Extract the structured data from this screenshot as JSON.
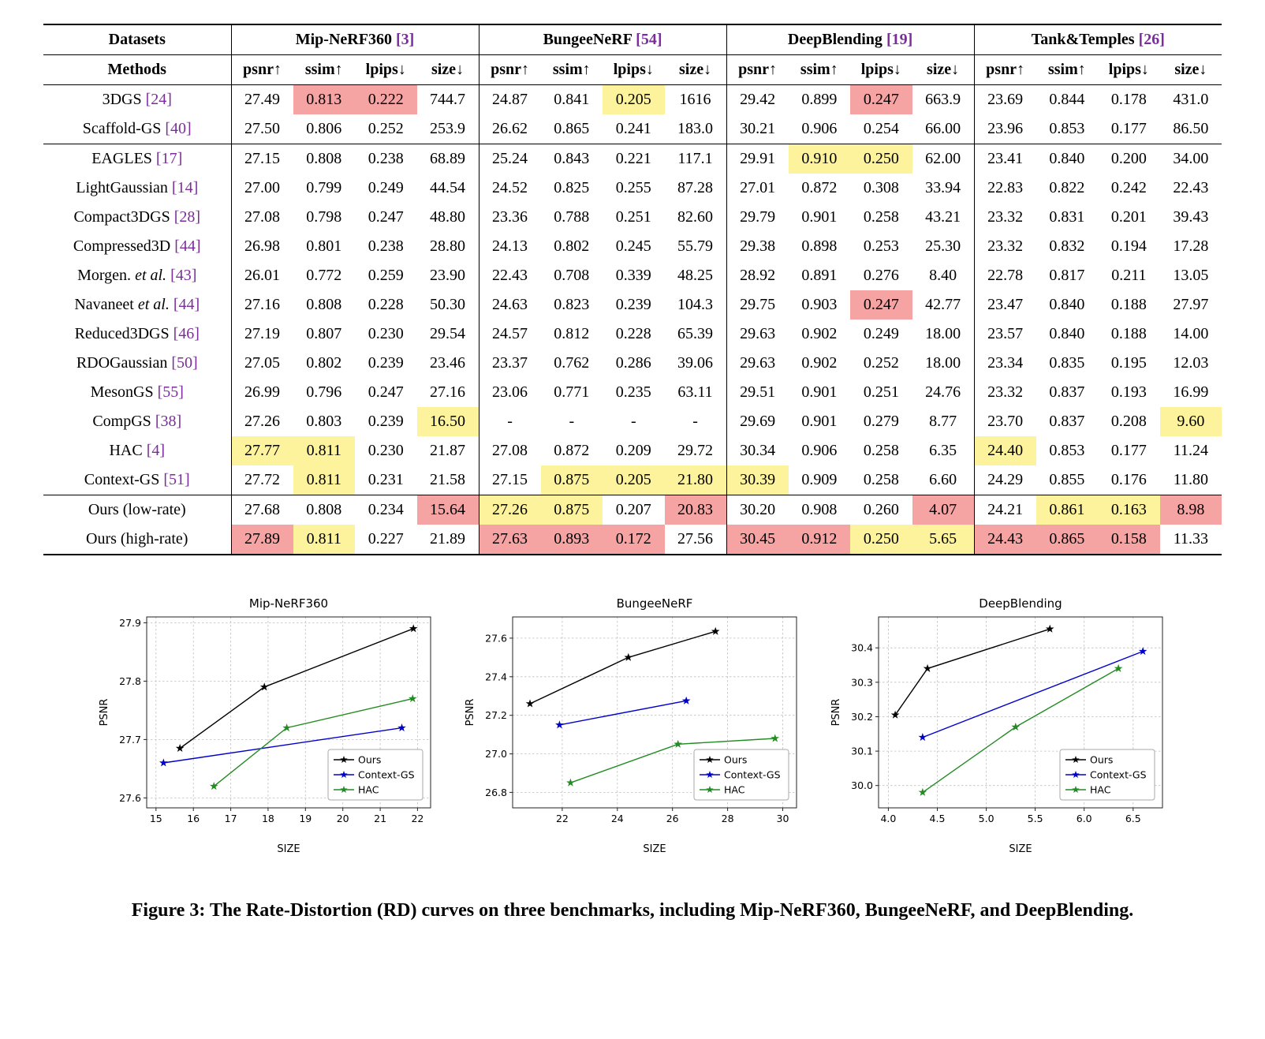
{
  "colors": {
    "highlight_best": "#F5A3A3",
    "highlight_second": "#FCF39C",
    "reference": "#7B2D9B"
  },
  "table": {
    "datasets_label": "Datasets",
    "methods_label": "Methods",
    "col_groups": [
      {
        "label": "Mip-NeRF360",
        "ref": "[3]"
      },
      {
        "label": "BungeeNeRF",
        "ref": "[54]"
      },
      {
        "label": "DeepBlending",
        "ref": "[19]"
      },
      {
        "label": "Tank&Temples",
        "ref": "[26]"
      }
    ],
    "metric_headers": [
      "psnr↑",
      "ssim↑",
      "lpips↓",
      "size↓"
    ],
    "rows": [
      {
        "method": "3DGS",
        "ref": "[24]",
        "rule_below": false,
        "values": [
          "27.49",
          "0.813",
          "0.222",
          "744.7",
          "24.87",
          "0.841",
          "0.205",
          "1616",
          "29.42",
          "0.899",
          "0.247",
          "663.9",
          "23.69",
          "0.844",
          "0.178",
          "431.0"
        ],
        "hl": [
          "",
          "r",
          "r",
          "",
          "",
          "",
          "y",
          "",
          "",
          "",
          "r",
          "",
          "",
          "",
          "",
          ""
        ]
      },
      {
        "method": "Scaffold-GS",
        "ref": "[40]",
        "rule_below": true,
        "values": [
          "27.50",
          "0.806",
          "0.252",
          "253.9",
          "26.62",
          "0.865",
          "0.241",
          "183.0",
          "30.21",
          "0.906",
          "0.254",
          "66.00",
          "23.96",
          "0.853",
          "0.177",
          "86.50"
        ],
        "hl": [
          "",
          "",
          "",
          "",
          "",
          "",
          "",
          "",
          "",
          "",
          "",
          "",
          "",
          "",
          "",
          ""
        ]
      },
      {
        "method": "EAGLES",
        "ref": "[17]",
        "rule_below": false,
        "values": [
          "27.15",
          "0.808",
          "0.238",
          "68.89",
          "25.24",
          "0.843",
          "0.221",
          "117.1",
          "29.91",
          "0.910",
          "0.250",
          "62.00",
          "23.41",
          "0.840",
          "0.200",
          "34.00"
        ],
        "hl": [
          "",
          "",
          "",
          "",
          "",
          "",
          "",
          "",
          "",
          "y",
          "y",
          "",
          "",
          "",
          "",
          ""
        ]
      },
      {
        "method": "LightGaussian",
        "ref": "[14]",
        "rule_below": false,
        "values": [
          "27.00",
          "0.799",
          "0.249",
          "44.54",
          "24.52",
          "0.825",
          "0.255",
          "87.28",
          "27.01",
          "0.872",
          "0.308",
          "33.94",
          "22.83",
          "0.822",
          "0.242",
          "22.43"
        ],
        "hl": [
          "",
          "",
          "",
          "",
          "",
          "",
          "",
          "",
          "",
          "",
          "",
          "",
          "",
          "",
          "",
          ""
        ]
      },
      {
        "method": "Compact3DGS",
        "ref": "[28]",
        "rule_below": false,
        "values": [
          "27.08",
          "0.798",
          "0.247",
          "48.80",
          "23.36",
          "0.788",
          "0.251",
          "82.60",
          "29.79",
          "0.901",
          "0.258",
          "43.21",
          "23.32",
          "0.831",
          "0.201",
          "39.43"
        ],
        "hl": [
          "",
          "",
          "",
          "",
          "",
          "",
          "",
          "",
          "",
          "",
          "",
          "",
          "",
          "",
          "",
          ""
        ]
      },
      {
        "method": "Compressed3D",
        "ref": "[44]",
        "rule_below": false,
        "values": [
          "26.98",
          "0.801",
          "0.238",
          "28.80",
          "24.13",
          "0.802",
          "0.245",
          "55.79",
          "29.38",
          "0.898",
          "0.253",
          "25.30",
          "23.32",
          "0.832",
          "0.194",
          "17.28"
        ],
        "hl": [
          "",
          "",
          "",
          "",
          "",
          "",
          "",
          "",
          "",
          "",
          "",
          "",
          "",
          "",
          "",
          ""
        ]
      },
      {
        "method": "Morgen. *et al.*",
        "ref": "[43]",
        "rule_below": false,
        "values": [
          "26.01",
          "0.772",
          "0.259",
          "23.90",
          "22.43",
          "0.708",
          "0.339",
          "48.25",
          "28.92",
          "0.891",
          "0.276",
          "8.40",
          "22.78",
          "0.817",
          "0.211",
          "13.05"
        ],
        "hl": [
          "",
          "",
          "",
          "",
          "",
          "",
          "",
          "",
          "",
          "",
          "",
          "",
          "",
          "",
          "",
          ""
        ]
      },
      {
        "method": "Navaneet *et al.*",
        "ref": "[44]",
        "rule_below": false,
        "values": [
          "27.16",
          "0.808",
          "0.228",
          "50.30",
          "24.63",
          "0.823",
          "0.239",
          "104.3",
          "29.75",
          "0.903",
          "0.247",
          "42.77",
          "23.47",
          "0.840",
          "0.188",
          "27.97"
        ],
        "hl": [
          "",
          "",
          "",
          "",
          "",
          "",
          "",
          "",
          "",
          "",
          "r",
          "",
          "",
          "",
          "",
          ""
        ]
      },
      {
        "method": "Reduced3DGS",
        "ref": "[46]",
        "rule_below": false,
        "values": [
          "27.19",
          "0.807",
          "0.230",
          "29.54",
          "24.57",
          "0.812",
          "0.228",
          "65.39",
          "29.63",
          "0.902",
          "0.249",
          "18.00",
          "23.57",
          "0.840",
          "0.188",
          "14.00"
        ],
        "hl": [
          "",
          "",
          "",
          "",
          "",
          "",
          "",
          "",
          "",
          "",
          "",
          "",
          "",
          "",
          "",
          ""
        ]
      },
      {
        "method": "RDOGaussian",
        "ref": "[50]",
        "rule_below": false,
        "values": [
          "27.05",
          "0.802",
          "0.239",
          "23.46",
          "23.37",
          "0.762",
          "0.286",
          "39.06",
          "29.63",
          "0.902",
          "0.252",
          "18.00",
          "23.34",
          "0.835",
          "0.195",
          "12.03"
        ],
        "hl": [
          "",
          "",
          "",
          "",
          "",
          "",
          "",
          "",
          "",
          "",
          "",
          "",
          "",
          "",
          "",
          ""
        ]
      },
      {
        "method": "MesonGS",
        "ref": "[55]",
        "rule_below": false,
        "values": [
          "26.99",
          "0.796",
          "0.247",
          "27.16",
          "23.06",
          "0.771",
          "0.235",
          "63.11",
          "29.51",
          "0.901",
          "0.251",
          "24.76",
          "23.32",
          "0.837",
          "0.193",
          "16.99"
        ],
        "hl": [
          "",
          "",
          "",
          "",
          "",
          "",
          "",
          "",
          "",
          "",
          "",
          "",
          "",
          "",
          "",
          ""
        ]
      },
      {
        "method": "CompGS",
        "ref": "[38]",
        "rule_below": false,
        "values": [
          "27.26",
          "0.803",
          "0.239",
          "16.50",
          "-",
          "-",
          "-",
          "-",
          "29.69",
          "0.901",
          "0.279",
          "8.77",
          "23.70",
          "0.837",
          "0.208",
          "9.60"
        ],
        "hl": [
          "",
          "",
          "",
          "y",
          "",
          "",
          "",
          "",
          "",
          "",
          "",
          "",
          "",
          "",
          "",
          "y"
        ]
      },
      {
        "method": "HAC",
        "ref": "[4]",
        "rule_below": false,
        "values": [
          "27.77",
          "0.811",
          "0.230",
          "21.87",
          "27.08",
          "0.872",
          "0.209",
          "29.72",
          "30.34",
          "0.906",
          "0.258",
          "6.35",
          "24.40",
          "0.853",
          "0.177",
          "11.24"
        ],
        "hl": [
          "y",
          "y",
          "",
          "",
          "",
          "",
          "",
          "",
          "",
          "",
          "",
          "",
          "y",
          "",
          "",
          ""
        ]
      },
      {
        "method": "Context-GS",
        "ref": "[51]",
        "rule_below": true,
        "values": [
          "27.72",
          "0.811",
          "0.231",
          "21.58",
          "27.15",
          "0.875",
          "0.205",
          "21.80",
          "30.39",
          "0.909",
          "0.258",
          "6.60",
          "24.29",
          "0.855",
          "0.176",
          "11.80"
        ],
        "hl": [
          "",
          "y",
          "",
          "",
          "",
          "y",
          "y",
          "y",
          "y",
          "",
          "",
          "",
          "",
          "",
          "",
          ""
        ]
      },
      {
        "method": "Ours (low-rate)",
        "ref": "",
        "rule_below": false,
        "values": [
          "27.68",
          "0.808",
          "0.234",
          "15.64",
          "27.26",
          "0.875",
          "0.207",
          "20.83",
          "30.20",
          "0.908",
          "0.260",
          "4.07",
          "24.21",
          "0.861",
          "0.163",
          "8.98"
        ],
        "hl": [
          "",
          "",
          "",
          "r",
          "y",
          "y",
          "",
          "r",
          "",
          "",
          "",
          "r",
          "",
          "y",
          "y",
          "r"
        ]
      },
      {
        "method": "Ours (high-rate)",
        "ref": "",
        "rule_below": false,
        "values": [
          "27.89",
          "0.811",
          "0.227",
          "21.89",
          "27.63",
          "0.893",
          "0.172",
          "27.56",
          "30.45",
          "0.912",
          "0.250",
          "5.65",
          "24.43",
          "0.865",
          "0.158",
          "11.33"
        ],
        "hl": [
          "r",
          "y",
          "",
          "",
          "r",
          "r",
          "r",
          "",
          "r",
          "r",
          "y",
          "y",
          "r",
          "r",
          "r",
          ""
        ]
      }
    ]
  },
  "chart_data": [
    {
      "type": "line",
      "title": "Mip-NeRF360",
      "xlabel": "SIZE",
      "ylabel": "PSNR",
      "xlim": [
        14.75,
        22.35
      ],
      "ylim": [
        27.583,
        27.91
      ],
      "xticks": [
        15,
        16,
        17,
        18,
        19,
        20,
        21,
        22
      ],
      "xtick_labels": [
        "15",
        "16",
        "17",
        "18",
        "19",
        "20",
        "21",
        "22"
      ],
      "yticks": [
        27.6,
        27.7,
        27.8,
        27.9
      ],
      "ytick_labels": [
        "27.6",
        "27.7",
        "27.8",
        "27.9"
      ],
      "grid": true,
      "legend_position": "lower right",
      "series": [
        {
          "name": "Ours",
          "color": "#000000",
          "points": [
            [
              15.64,
              27.685
            ],
            [
              17.9,
              27.79
            ],
            [
              21.89,
              27.89
            ]
          ]
        },
        {
          "name": "Context-GS",
          "color": "#0000CD",
          "points": [
            [
              15.2,
              27.66
            ],
            [
              21.58,
              27.72
            ]
          ]
        },
        {
          "name": "HAC",
          "color": "#228B22",
          "points": [
            [
              16.55,
              27.62
            ],
            [
              18.5,
              27.72
            ],
            [
              21.87,
              27.77
            ]
          ]
        }
      ]
    },
    {
      "type": "line",
      "title": "BungeeNeRF",
      "xlabel": "SIZE",
      "ylabel": "PSNR",
      "xlim": [
        20.2,
        30.5
      ],
      "ylim": [
        26.72,
        27.71
      ],
      "xticks": [
        22,
        24,
        26,
        28,
        30
      ],
      "xtick_labels": [
        "22",
        "24",
        "26",
        "28",
        "30"
      ],
      "yticks": [
        26.8,
        27.0,
        27.2,
        27.4,
        27.6
      ],
      "ytick_labels": [
        "26.8",
        "27.0",
        "27.2",
        "27.4",
        "27.6"
      ],
      "grid": true,
      "legend_position": "lower right",
      "series": [
        {
          "name": "Ours",
          "color": "#000000",
          "points": [
            [
              20.83,
              27.26
            ],
            [
              24.4,
              27.5
            ],
            [
              27.56,
              27.635
            ]
          ]
        },
        {
          "name": "Context-GS",
          "color": "#0000CD",
          "points": [
            [
              21.9,
              27.15
            ],
            [
              26.5,
              27.275
            ]
          ]
        },
        {
          "name": "HAC",
          "color": "#228B22",
          "points": [
            [
              22.3,
              26.85
            ],
            [
              26.2,
              27.05
            ],
            [
              29.72,
              27.08
            ]
          ]
        }
      ]
    },
    {
      "type": "line",
      "title": "DeepBlending",
      "xlabel": "SIZE",
      "ylabel": "PSNR",
      "xlim": [
        3.9,
        6.8
      ],
      "ylim": [
        29.935,
        30.49
      ],
      "xticks": [
        4.0,
        4.5,
        5.0,
        5.5,
        6.0,
        6.5
      ],
      "xtick_labels": [
        "4.0",
        "4.5",
        "5.0",
        "5.5",
        "6.0",
        "6.5"
      ],
      "yticks": [
        30.0,
        30.1,
        30.2,
        30.3,
        30.4
      ],
      "ytick_labels": [
        "30.0",
        "30.1",
        "30.2",
        "30.3",
        "30.4"
      ],
      "grid": true,
      "legend_position": "lower right",
      "series": [
        {
          "name": "Ours",
          "color": "#000000",
          "points": [
            [
              4.07,
              30.205
            ],
            [
              4.4,
              30.34
            ],
            [
              5.65,
              30.455
            ]
          ]
        },
        {
          "name": "Context-GS",
          "color": "#0000CD",
          "points": [
            [
              4.35,
              30.14
            ],
            [
              6.6,
              30.39
            ]
          ]
        },
        {
          "name": "HAC",
          "color": "#228B22",
          "points": [
            [
              4.35,
              29.98
            ],
            [
              5.3,
              30.17
            ],
            [
              6.35,
              30.34
            ]
          ]
        }
      ]
    }
  ],
  "caption": "Figure 3: The Rate-Distortion (RD) curves on three benchmarks, including Mip-NeRF360, BungeeNeRF, and DeepBlending."
}
